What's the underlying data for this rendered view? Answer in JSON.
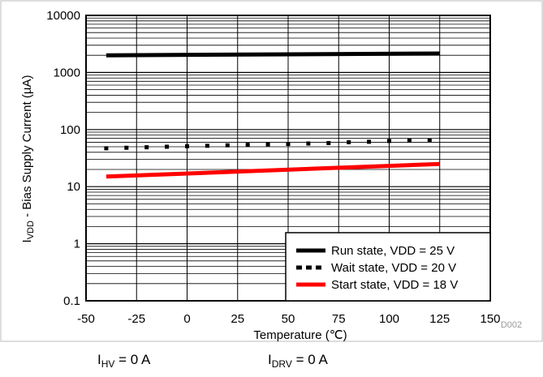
{
  "chart_data": {
    "type": "line",
    "ylabel_main": "I",
    "ylabel_sub": "VDD",
    "ylabel_rest": " - Bias Supply Current  (µA)",
    "xlabel": "Temperature  (℃)",
    "xlim": [
      -50,
      150
    ],
    "ylim": [
      0.1,
      10000
    ],
    "yscale": "log",
    "grid": true,
    "legend_position": "bottom-right",
    "x_ticks": [
      "-50",
      "-25",
      "0",
      "25",
      "50",
      "75",
      "100",
      "125",
      "150"
    ],
    "y_ticks": [
      "0.1",
      "1",
      "10",
      "100",
      "1000",
      "10000"
    ],
    "series": [
      {
        "name": "Run state,  VDD = 25 V",
        "style": "solid-thick",
        "color": "#000000",
        "x": [
          -40,
          125
        ],
        "y": [
          2000,
          2150
        ]
      },
      {
        "name": "Wait state, VDD = 20 V",
        "style": "dotted",
        "color": "#000000",
        "x": [
          -40,
          -30,
          -20,
          -10,
          0,
          10,
          20,
          30,
          40,
          50,
          60,
          70,
          80,
          90,
          100,
          110,
          120
        ],
        "y": [
          47,
          48,
          49,
          50,
          51,
          52,
          53,
          54,
          55,
          56,
          57,
          58,
          60,
          61,
          63,
          64,
          65
        ]
      },
      {
        "name": "Start state, VDD = 18 V",
        "style": "solid-thick",
        "color": "#ff0000",
        "x": [
          -40,
          125
        ],
        "y": [
          15,
          25
        ]
      }
    ],
    "watermark": "D002"
  },
  "footer": {
    "ihv_main": "I",
    "ihv_sub": "HV",
    "ihv_rest": " = 0 A",
    "idrv_main": "I",
    "idrv_sub": "DRV",
    "idrv_rest": " = 0 A"
  }
}
